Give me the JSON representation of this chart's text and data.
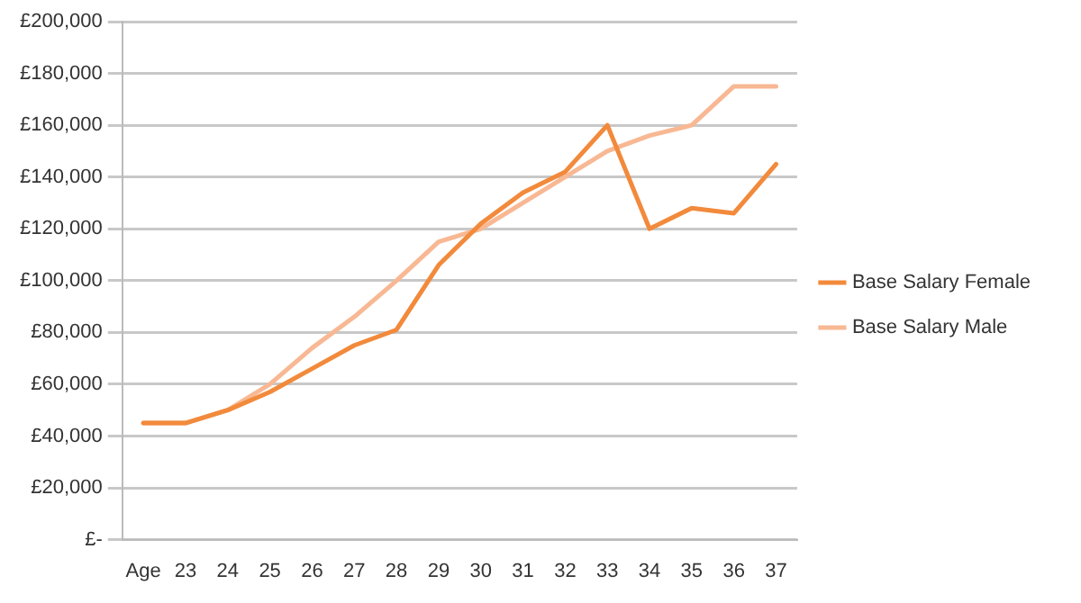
{
  "chart_data": {
    "type": "line",
    "categories": [
      "Age",
      "23",
      "24",
      "25",
      "26",
      "27",
      "28",
      "29",
      "30",
      "31",
      "32",
      "33",
      "34",
      "35",
      "36",
      "37"
    ],
    "series": [
      {
        "name": "Base Salary Female",
        "color": "#f28a3c",
        "values": [
          45000,
          45000,
          50000,
          57000,
          66000,
          75000,
          81000,
          106000,
          122000,
          134000,
          142000,
          160000,
          120000,
          128000,
          126000,
          145000
        ]
      },
      {
        "name": "Base Salary Male",
        "color": "#f8b893",
        "values": [
          45000,
          45000,
          50000,
          60000,
          74000,
          86000,
          100000,
          115000,
          120000,
          130000,
          140000,
          150000,
          156000,
          160000,
          175000,
          175000
        ]
      }
    ],
    "ylim": [
      0,
      200000
    ],
    "yticks": [
      {
        "value": 0,
        "label": "£-"
      },
      {
        "value": 20000,
        "label": "£20,000"
      },
      {
        "value": 40000,
        "label": "£40,000"
      },
      {
        "value": 60000,
        "label": "£60,000"
      },
      {
        "value": 80000,
        "label": "£80,000"
      },
      {
        "value": 100000,
        "label": "£100,000"
      },
      {
        "value": 120000,
        "label": "£120,000"
      },
      {
        "value": 140000,
        "label": "£140,000"
      },
      {
        "value": 160000,
        "label": "£160,000"
      },
      {
        "value": 180000,
        "label": "£180,000"
      },
      {
        "value": 200000,
        "label": "£200,000"
      }
    ],
    "grid": "y",
    "legend": "right",
    "marker": "none",
    "line_style": "solid"
  }
}
